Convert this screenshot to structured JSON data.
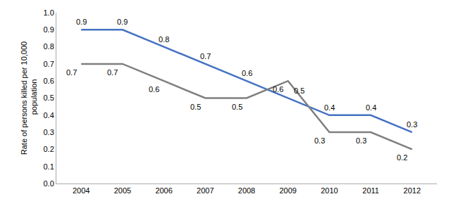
{
  "chart_data": {
    "type": "line",
    "x": [
      2004,
      2005,
      2006,
      2007,
      2008,
      2009,
      2010,
      2011,
      2012
    ],
    "series": [
      {
        "color": "#4472C4",
        "values": [
          0.9,
          0.9,
          0.8,
          0.7,
          0.6,
          0.5,
          0.4,
          0.4,
          0.3
        ]
      },
      {
        "color": "#7F7F7F",
        "values": [
          0.7,
          0.7,
          0.6,
          0.5,
          0.5,
          0.6,
          0.3,
          0.3,
          0.2
        ]
      }
    ],
    "y_label": "Rate of persons killed per 10,000\n population",
    "xlim": [
      2003.4,
      2012.6
    ],
    "xticks": [
      2004,
      2005,
      2006,
      2007,
      2008,
      2009,
      2010,
      2011,
      2012
    ],
    "ylim": [
      0.0,
      1.0
    ],
    "yticks": [
      {
        "value": 0.0,
        "label": "0.0"
      },
      0.1,
      0.2,
      0.3,
      0.4,
      0.5,
      0.6,
      0.7,
      0.8,
      0.9,
      {
        "value": 1.0,
        "label": "1.0"
      }
    ],
    "grid": false,
    "data_labels": true
  }
}
